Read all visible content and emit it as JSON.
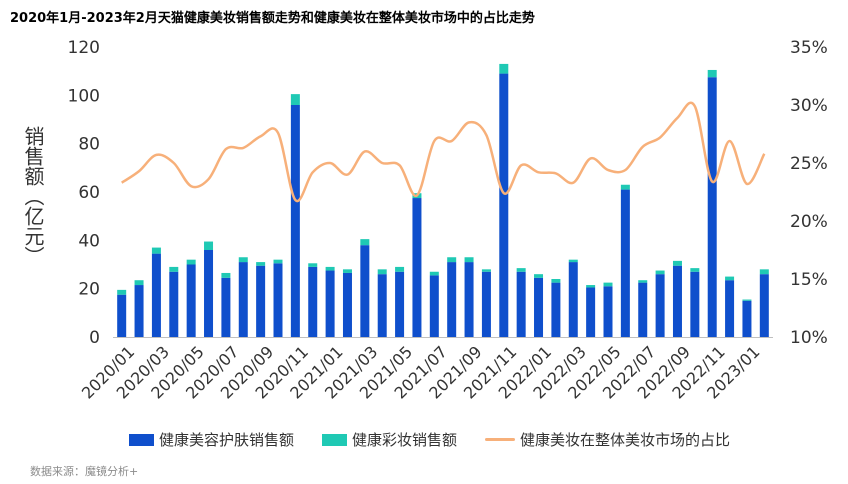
{
  "chart_data": {
    "type": "bar",
    "stacked": true,
    "title": "2020年1月-2023年2月天猫健康美妆销售额走势和健康美妆在整体美妆市场中的占比走势",
    "ylabel": "销售额（亿元）",
    "ylim": [
      0,
      120
    ],
    "yticks": [
      "0",
      "20",
      "40",
      "60",
      "80",
      "100",
      "120"
    ],
    "y2lim": [
      10,
      35
    ],
    "y2ticks": [
      "10%",
      "15%",
      "20%",
      "25%",
      "30%",
      "35%"
    ],
    "grid": false,
    "legend_position": "bottom",
    "categories": [
      "2020/01",
      "2020/02",
      "2020/03",
      "2020/04",
      "2020/05",
      "2020/06",
      "2020/07",
      "2020/08",
      "2020/09",
      "2020/10",
      "2020/11",
      "2020/12",
      "2021/01",
      "2021/02",
      "2021/03",
      "2021/04",
      "2021/05",
      "2021/06",
      "2021/07",
      "2021/08",
      "2021/09",
      "2021/10",
      "2021/11",
      "2021/12",
      "2022/01",
      "2022/02",
      "2022/03",
      "2022/04",
      "2022/05",
      "2022/06",
      "2022/07",
      "2022/08",
      "2022/09",
      "2022/10",
      "2022/11",
      "2022/12",
      "2023/01",
      "2023/02"
    ],
    "xtick_labels": [
      "2020/01",
      "2020/03",
      "2020/05",
      "2020/07",
      "2020/09",
      "2020/11",
      "2021/01",
      "2021/03",
      "2021/05",
      "2021/07",
      "2021/09",
      "2021/11",
      "2022/01",
      "2022/03",
      "2022/05",
      "2022/07",
      "2022/09",
      "2022/11",
      "2023/01"
    ],
    "series": [
      {
        "name": "健康美容护肤销售额",
        "type": "bar",
        "axis": "left",
        "color": "#0f4fcc",
        "values": [
          17.5,
          21.5,
          34.5,
          27,
          30,
          36,
          24.5,
          31,
          29.5,
          30.5,
          96,
          29,
          27.5,
          26.5,
          38,
          26,
          27,
          57.5,
          25.5,
          31,
          31,
          27,
          109,
          27,
          24.5,
          22.5,
          31,
          20.5,
          21,
          61,
          22.5,
          26,
          29.5,
          27,
          107.5,
          23.5,
          15,
          26
        ]
      },
      {
        "name": "健康彩妆销售额",
        "type": "bar",
        "axis": "left",
        "color": "#1fc9b4",
        "values": [
          2,
          2,
          2.5,
          2,
          2,
          3.5,
          2,
          2,
          1.5,
          1.5,
          4.5,
          1.5,
          1.5,
          1.5,
          2.5,
          2,
          2,
          2,
          1.5,
          2,
          2,
          1,
          4,
          1.5,
          1.5,
          1.5,
          1,
          1,
          1.5,
          2,
          1,
          1.5,
          2,
          1.5,
          3,
          1.5,
          0.5,
          2
        ]
      },
      {
        "name": "健康美妆在整体美妆市场的占比",
        "type": "line",
        "axis": "right",
        "color": "#f7b07a",
        "values": [
          23.3,
          24.3,
          25.7,
          25.0,
          23.0,
          23.6,
          26.2,
          26.3,
          27.3,
          27.6,
          21.8,
          24.2,
          25.0,
          24.0,
          26.0,
          25.0,
          24.8,
          22.2,
          26.9,
          26.9,
          28.5,
          27.4,
          22.4,
          24.8,
          24.2,
          24.1,
          23.3,
          25.4,
          24.4,
          24.4,
          26.4,
          27.2,
          28.9,
          29.9,
          23.4,
          26.9,
          23.2,
          25.8
        ]
      }
    ]
  },
  "source_label": "数据来源：魔镜分析+"
}
